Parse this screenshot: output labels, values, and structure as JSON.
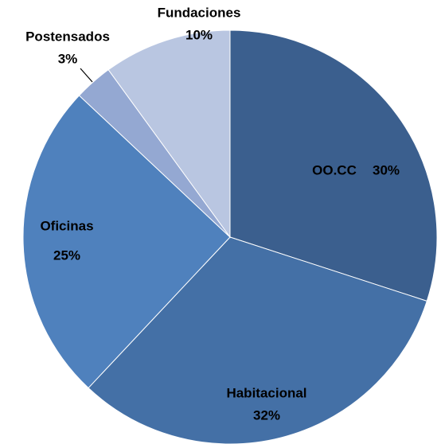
{
  "chart_data": {
    "type": "pie",
    "categories": [
      "OO.CC",
      "Habitacional",
      "Oficinas",
      "Postensados",
      "Fundaciones"
    ],
    "values": [
      30,
      32,
      25,
      3,
      10
    ],
    "value_labels": [
      "30%",
      "32%",
      "25%",
      "3%",
      "10%"
    ],
    "colors": [
      "#3b5f8e",
      "#4470a6",
      "#4f81bd",
      "#94a8d2",
      "#b9c6e1"
    ]
  }
}
